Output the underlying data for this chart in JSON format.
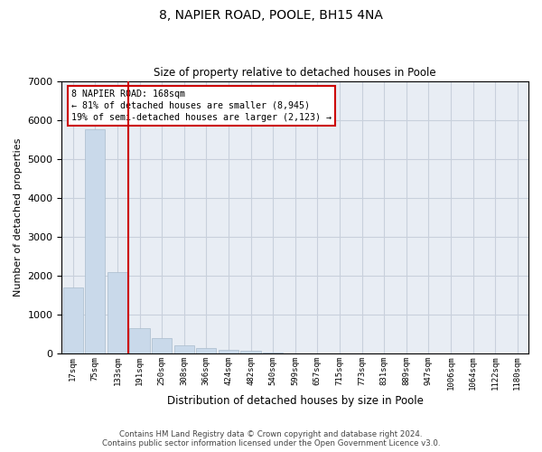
{
  "title_line1": "8, NAPIER ROAD, POOLE, BH15 4NA",
  "title_line2": "Size of property relative to detached houses in Poole",
  "xlabel": "Distribution of detached houses by size in Poole",
  "ylabel": "Number of detached properties",
  "bar_color": "#c9d9ea",
  "bar_edge_color": "#aabccc",
  "vline_color": "#cc0000",
  "annotation_text": "8 NAPIER ROAD: 168sqm\n← 81% of detached houses are smaller (8,945)\n19% of semi-detached houses are larger (2,123) →",
  "annotation_box_color": "#cc0000",
  "categories": [
    "17sqm",
    "75sqm",
    "133sqm",
    "191sqm",
    "250sqm",
    "308sqm",
    "366sqm",
    "424sqm",
    "482sqm",
    "540sqm",
    "599sqm",
    "657sqm",
    "715sqm",
    "773sqm",
    "831sqm",
    "889sqm",
    "947sqm",
    "1006sqm",
    "1064sqm",
    "1122sqm",
    "1180sqm"
  ],
  "values": [
    1700,
    5750,
    2100,
    650,
    390,
    220,
    130,
    85,
    60,
    20,
    10,
    5,
    3,
    2,
    1,
    1,
    0,
    0,
    0,
    0,
    0
  ],
  "ylim": [
    0,
    7000
  ],
  "yticks": [
    0,
    1000,
    2000,
    3000,
    4000,
    5000,
    6000,
    7000
  ],
  "background_color": "#ffffff",
  "axes_bg_color": "#e8edf4",
  "grid_color": "#c8d0dc",
  "footer_line1": "Contains HM Land Registry data © Crown copyright and database right 2024.",
  "footer_line2": "Contains public sector information licensed under the Open Government Licence v3.0."
}
